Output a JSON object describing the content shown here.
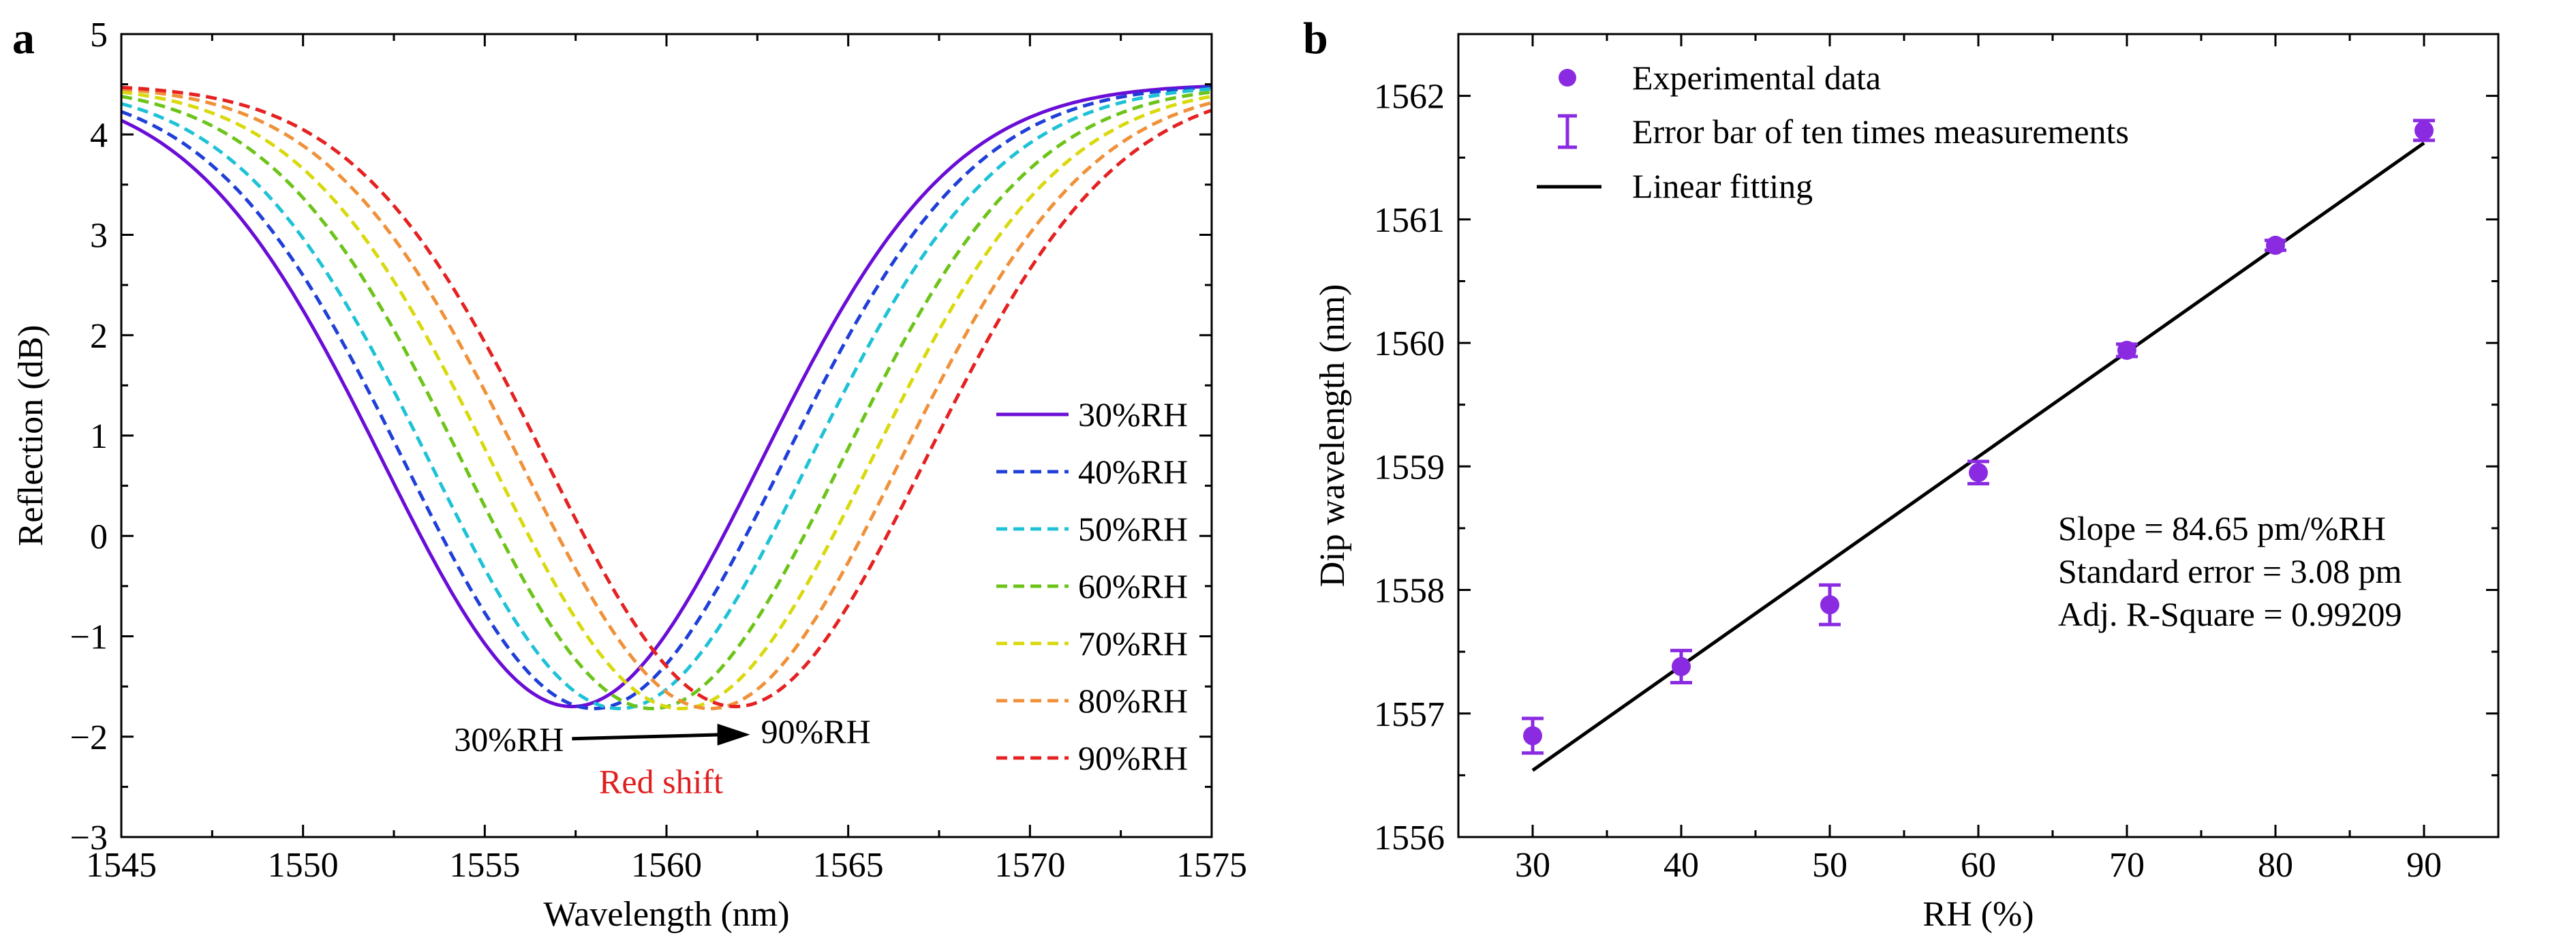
{
  "chart_data": [
    {
      "type": "line",
      "panel_label": "a",
      "xlabel": "Wavelength (nm)",
      "ylabel": "Reflection (dB)",
      "xlim": [
        1545,
        1575
      ],
      "ylim": [
        -3,
        5
      ],
      "xticks": [
        1545,
        1550,
        1555,
        1560,
        1565,
        1570,
        1575
      ],
      "yticks": [
        -3,
        -2,
        -1,
        0,
        1,
        2,
        3,
        4,
        5
      ],
      "ytick_labels": [
        "−3",
        "−2",
        "−1",
        "0",
        "1",
        "2",
        "3",
        "4",
        "5"
      ],
      "legend_position": "right",
      "series": [
        {
          "name": "30%RH",
          "color": "#6a0dd6",
          "dash": "solid",
          "center": 1557.4,
          "width": 5.2,
          "min": -1.7,
          "max": 4.5
        },
        {
          "name": "40%RH",
          "color": "#1f3fd8",
          "dash": "dashed",
          "center": 1558.0,
          "width": 5.2,
          "min": -1.72,
          "max": 4.5
        },
        {
          "name": "50%RH",
          "color": "#1ec2d6",
          "dash": "dashed",
          "center": 1558.7,
          "width": 5.2,
          "min": -1.72,
          "max": 4.5
        },
        {
          "name": "60%RH",
          "color": "#6cc41a",
          "dash": "dashed",
          "center": 1559.6,
          "width": 5.2,
          "min": -1.72,
          "max": 4.5
        },
        {
          "name": "70%RH",
          "color": "#d9d90e",
          "dash": "dashed",
          "center": 1560.4,
          "width": 5.2,
          "min": -1.72,
          "max": 4.5
        },
        {
          "name": "80%RH",
          "color": "#f0913a",
          "dash": "dashed",
          "center": 1561.2,
          "width": 5.2,
          "min": -1.72,
          "max": 4.5
        },
        {
          "name": "90%RH",
          "color": "#e52121",
          "dash": "dashed",
          "center": 1561.9,
          "width": 5.2,
          "min": -1.7,
          "max": 4.5
        }
      ],
      "annotation": {
        "from_label": "30%RH",
        "to_label": "90%RH",
        "arrow_from": [
          1557.4,
          -2.02
        ],
        "arrow_to": [
          1562.3,
          -1.98
        ],
        "shift_label": "Red shift",
        "shift_color": "#e02020"
      }
    },
    {
      "type": "scatter",
      "panel_label": "b",
      "xlabel": "RH (%)",
      "ylabel": "Dip wavelength (nm)",
      "xlim": [
        25,
        95
      ],
      "ylim": [
        1556,
        1562.5
      ],
      "xticks": [
        30,
        40,
        50,
        60,
        70,
        80,
        90
      ],
      "yticks": [
        1556,
        1557,
        1558,
        1559,
        1560,
        1561,
        1562
      ],
      "point_color": "#8a2be2",
      "legend_position": "top-left",
      "legend": [
        "Experimental data",
        "Error bar of ten times measurements",
        "Linear fitting"
      ],
      "x": [
        30,
        40,
        50,
        60,
        70,
        80,
        90
      ],
      "y": [
        1556.82,
        1557.38,
        1557.88,
        1558.95,
        1559.94,
        1560.79,
        1561.72
      ],
      "error": [
        0.14,
        0.13,
        0.16,
        0.09,
        0.05,
        0.04,
        0.08
      ],
      "fit": {
        "slope": 0.08465,
        "intercept": 1554.0,
        "x_range": [
          30,
          90
        ]
      },
      "annotations": [
        "Slope = 84.65 pm/%RH",
        "Standard error = 3.08 pm",
        "Adj. R-Square = 0.99209"
      ]
    }
  ]
}
